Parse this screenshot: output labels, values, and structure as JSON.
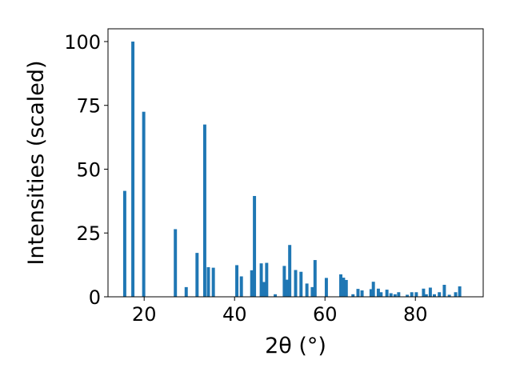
{
  "chart_data": {
    "type": "bar",
    "title": "",
    "xlabel": "2θ (°)",
    "ylabel": "Intensities (scaled)",
    "xlim": [
      12,
      95
    ],
    "ylim": [
      0,
      105
    ],
    "xticks": [
      20,
      40,
      60,
      80
    ],
    "yticks": [
      0,
      25,
      50,
      75,
      100
    ],
    "bar_width_deg": 0.7,
    "bar_color": "#1f77b4",
    "grid": false,
    "legend": "none",
    "x": [
      15.7,
      17.5,
      19.9,
      26.9,
      29.3,
      31.7,
      33.4,
      34.2,
      35.3,
      40.5,
      41.5,
      43.8,
      44.4,
      45.9,
      46.5,
      47.1,
      49.0,
      51.0,
      51.6,
      52.2,
      53.5,
      54.7,
      56.0,
      57.2,
      57.8,
      60.3,
      63.5,
      64.1,
      64.7,
      66.2,
      67.3,
      68.2,
      70.2,
      70.7,
      71.8,
      72.4,
      73.7,
      74.6,
      75.5,
      76.3,
      78.2,
      79.2,
      80.2,
      81.8,
      82.4,
      83.3,
      84.2,
      85.3,
      86.4,
      87.5,
      88.9,
      89.8
    ],
    "y": [
      41.5,
      100,
      72.5,
      26.5,
      3.8,
      17.2,
      67.5,
      11.6,
      11.4,
      12.4,
      8.0,
      10.4,
      39.5,
      13.1,
      5.8,
      13.3,
      1.0,
      12.1,
      6.7,
      20.3,
      10.5,
      9.8,
      5.2,
      3.8,
      14.4,
      7.4,
      8.8,
      7.5,
      6.6,
      1.0,
      3.1,
      2.5,
      3.0,
      5.9,
      3.2,
      1.8,
      2.8,
      1.4,
      1.0,
      1.8,
      0.8,
      1.8,
      1.8,
      3.2,
      1.0,
      3.6,
      1.0,
      1.8,
      4.7,
      0.8,
      1.8,
      4.1
    ]
  }
}
